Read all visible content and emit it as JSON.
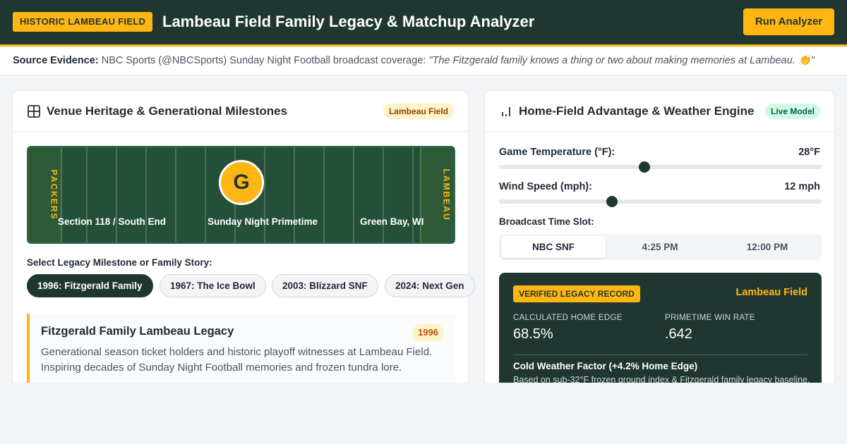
{
  "header": {
    "badge": "HISTORIC LAMBEAU FIELD",
    "title": "Lambeau Field Family Legacy & Matchup Analyzer",
    "run_button": "Run Analyzer"
  },
  "evidence": {
    "label": "Source Evidence:",
    "source": "NBC Sports (@NBCSports) Sunday Night Football broadcast coverage:",
    "quote": "\"The Fitzgerald family knows a thing or two about making memories at Lambeau. 👏\""
  },
  "venue_card": {
    "title": "Venue Heritage & Generational Milestones",
    "badge": "Lambeau Field",
    "field": {
      "left_endzone": "PACKERS",
      "right_endzone": "LAMBEAU",
      "logo": "G",
      "label_left": "Section 118 / South End",
      "label_center": "Sunday Night Primetime",
      "label_right": "Green Bay, WI"
    },
    "select_label": "Select Legacy Milestone or Family Story:",
    "chips": [
      {
        "label": "1996: Fitzgerald Family",
        "active": true
      },
      {
        "label": "1967: The Ice Bowl",
        "active": false
      },
      {
        "label": "2003: Blizzard SNF",
        "active": false
      },
      {
        "label": "2024: Next Gen",
        "active": false
      }
    ],
    "story": {
      "title": "Fitzgerald Family Lambeau Legacy",
      "year": "1996",
      "body": "Generational season ticket holders and historic playoff witnesses at Lambeau Field. Inspiring decades of Sunday Night Football memories and frozen tundra lore."
    }
  },
  "engine_card": {
    "title": "Home-Field Advantage & Weather Engine",
    "badge": "Live Model",
    "temperature": {
      "label": "Game Temperature (°F):",
      "value": "28°F",
      "level": 0.45
    },
    "wind": {
      "label": "Wind Speed (mph):",
      "value": "12 mph",
      "level": 0.35
    },
    "timeslot": {
      "label": "Broadcast Time Slot:",
      "options": [
        "NBC SNF",
        "4:25 PM",
        "12:00 PM"
      ],
      "selected": "NBC SNF"
    },
    "result": {
      "badge": "VERIFIED LEGACY RECORD",
      "venue": "Lambeau Field",
      "home_edge_label": "CALCULATED HOME EDGE",
      "home_edge_value": "68.5%",
      "win_rate_label": "PRIMETIME WIN RATE",
      "win_rate_value": ".642",
      "factor": "Cold Weather Factor (+4.2% Home Edge)",
      "note": "Based on sub-32°F frozen ground index & Fitzgerald family legacy baseline."
    }
  },
  "colors": {
    "primary": "#203731",
    "accent": "#ffb612"
  },
  "icons": {
    "venue": "grid-icon",
    "engine": "bar-chart-icon"
  }
}
